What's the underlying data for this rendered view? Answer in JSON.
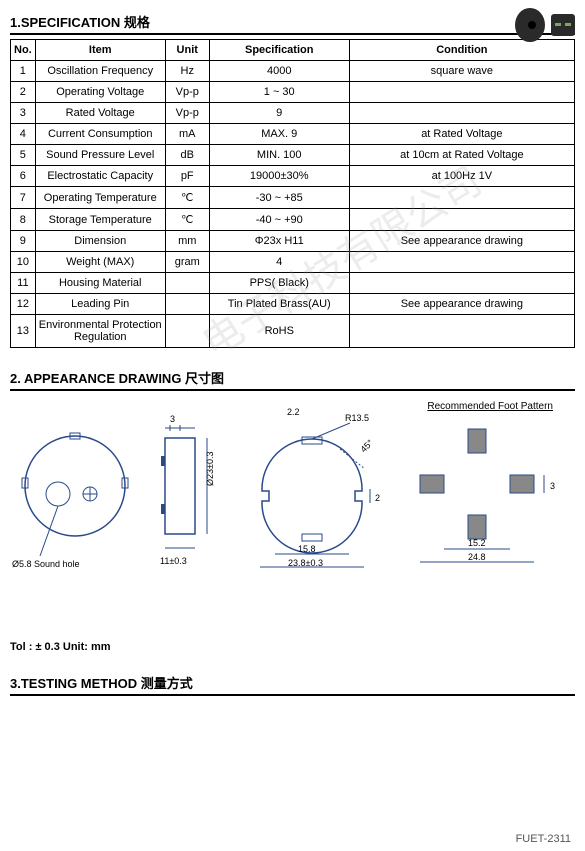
{
  "product_image": {
    "alt": "buzzer component"
  },
  "sections": {
    "spec_title": "1.SPECIFICATION  规格",
    "drawing_title": "2.  APPEARANCE DRAWING   尺寸图",
    "testing_title": "3.TESTING METHOD   测量方式"
  },
  "table": {
    "headers": {
      "no": "No.",
      "item": "Item",
      "unit": "Unit",
      "spec": "Specification",
      "cond": "Condition"
    },
    "rows": [
      {
        "no": "1",
        "item": "Oscillation Frequency",
        "unit": "Hz",
        "spec": "4000",
        "cond": "square wave"
      },
      {
        "no": "2",
        "item": "Operating Voltage",
        "unit": "Vp-p",
        "spec": "1 ~ 30",
        "cond": ""
      },
      {
        "no": "3",
        "item": "Rated Voltage",
        "unit": "Vp-p",
        "spec": "9",
        "cond": ""
      },
      {
        "no": "4",
        "item": "Current Consumption",
        "unit": "mA",
        "spec": "MAX. 9",
        "cond": "at Rated Voltage"
      },
      {
        "no": "5",
        "item": "Sound Pressure Level",
        "unit": "dB",
        "spec": "MIN. 100",
        "cond": "at 10cm at Rated Voltage"
      },
      {
        "no": "6",
        "item": "Electrostatic Capacity",
        "unit": "pF",
        "spec": "19000±30%",
        "cond": "at 100Hz 1V"
      },
      {
        "no": "7",
        "item": "Operating Temperature",
        "unit": "℃",
        "spec": "-30 ~ +85",
        "cond": ""
      },
      {
        "no": "8",
        "item": "Storage Temperature",
        "unit": "℃",
        "spec": "-40 ~ +90",
        "cond": ""
      },
      {
        "no": "9",
        "item": "Dimension",
        "unit": "mm",
        "spec": "Φ23x H11",
        "cond": "See appearance drawing"
      },
      {
        "no": "10",
        "item": "Weight (MAX)",
        "unit": "gram",
        "spec": "4",
        "cond": ""
      },
      {
        "no": "11",
        "item": "Housing Material",
        "unit": "",
        "spec": "PPS( Black)",
        "cond": ""
      },
      {
        "no": "12",
        "item": "Leading Pin",
        "unit": "",
        "spec": "Tin Plated Brass(AU)",
        "cond": "See appearance drawing"
      },
      {
        "no": "13",
        "item": "Environmental Protection Regulation",
        "unit": "",
        "spec": "RoHS",
        "cond": ""
      }
    ]
  },
  "drawing": {
    "tolerance_note": "Tol : ± 0.3    Unit: mm",
    "recommended_title": "Recommended Foot Pattern",
    "labels": {
      "sound_hole": "Ø5.8 Sound hole",
      "pin_w": "3",
      "height": "11±0.3",
      "diameter": "Ø23±0.3",
      "pin_offset": "2.2",
      "radius": "R13.5",
      "angle": "45°",
      "pin_h": "2",
      "inner_w": "15.8",
      "outer_w": "23.8±0.3",
      "fp_w": "15.2",
      "fp_total": "24.8",
      "fp_h": "3"
    },
    "colors": {
      "line": "#2a4a8a",
      "fill": "#ffffff"
    }
  },
  "footer": "FUET-2311",
  "watermark": "电子科技有限公司"
}
